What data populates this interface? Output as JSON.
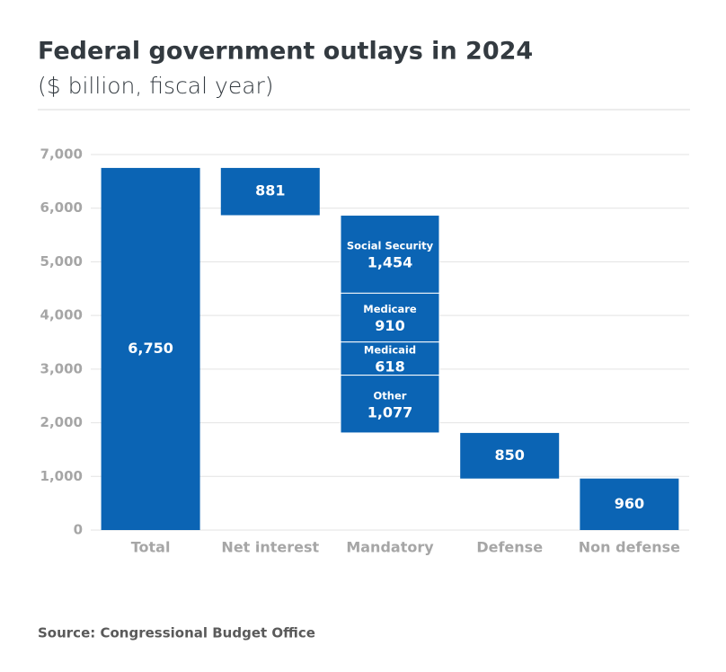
{
  "chart_data": {
    "type": "waterfall",
    "title": "Federal government outlays in 2024",
    "subtitle": "($ billion, fiscal year)",
    "source": "Source: Congressional Budget Office",
    "color": "#0b64b4",
    "ylim": [
      0,
      7000
    ],
    "yticks": [
      0,
      {
        "value": 1000,
        "label": "1,000"
      },
      {
        "value": 2000,
        "label": "2,000"
      },
      {
        "value": 3000,
        "label": "3,000"
      },
      {
        "value": 4000,
        "label": "4,000"
      },
      {
        "value": 5000,
        "label": "5,000"
      },
      {
        "value": 6000,
        "label": "6,000"
      },
      {
        "value": 7000,
        "label": "7,000"
      }
    ],
    "grid": true,
    "bars": [
      {
        "category": "Total",
        "segments": [
          {
            "value": 6750,
            "value_label": "6,750"
          }
        ]
      },
      {
        "category": "Net interest",
        "segments": [
          {
            "value": 881,
            "value_label": "881"
          }
        ]
      },
      {
        "category": "Mandatory",
        "segments": [
          {
            "name": "Social Security",
            "value": 1454,
            "value_label": "1,454"
          },
          {
            "name": "Medicare",
            "value": 910,
            "value_label": "910"
          },
          {
            "name": "Medicaid",
            "value": 618,
            "value_label": "618"
          },
          {
            "name": "Other",
            "value": 1077,
            "value_label": "1,077"
          }
        ]
      },
      {
        "category": "Defense",
        "segments": [
          {
            "value": 850,
            "value_label": "850"
          }
        ]
      },
      {
        "category": "Non defense",
        "segments": [
          {
            "value": 960,
            "value_label": "960"
          }
        ]
      }
    ]
  }
}
